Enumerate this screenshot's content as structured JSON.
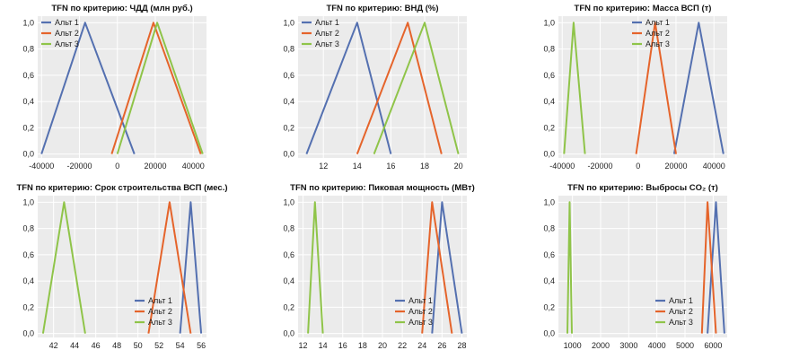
{
  "chart_data": [
    {
      "type": "line",
      "title": "TFN по критерию: ЧДД (млн руб.)",
      "xlim": [
        -42000,
        47000
      ],
      "ylim": [
        -0.03,
        1.05
      ],
      "x_ticks": [
        -40000,
        -20000,
        0,
        20000,
        40000
      ],
      "x_tick_labels": [
        "-40000",
        "-20000",
        "0",
        "20000",
        "40000"
      ],
      "y_ticks": [
        0,
        0.2,
        0.4,
        0.6,
        0.8,
        1.0
      ],
      "y_tick_labels": [
        "0,0",
        "0,2",
        "0,4",
        "0,6",
        "0,8",
        "1,0"
      ],
      "grid": true,
      "legend_position": "top-left",
      "series": [
        {
          "name": "Альт 1",
          "color": "#5470b0",
          "x": [
            -40000,
            -17000,
            9000
          ],
          "y": [
            0,
            1,
            0
          ]
        },
        {
          "name": "Альт 2",
          "color": "#e5642b",
          "x": [
            -3000,
            19000,
            44000
          ],
          "y": [
            0,
            1,
            0
          ]
        },
        {
          "name": "Альт 3",
          "color": "#8fc449",
          "x": [
            0,
            21000,
            45000
          ],
          "y": [
            0,
            1,
            0
          ]
        }
      ]
    },
    {
      "type": "line",
      "title": "TFN по критерию: ВНД (%)",
      "xlim": [
        10.5,
        20.5
      ],
      "ylim": [
        -0.03,
        1.05
      ],
      "x_ticks": [
        12,
        14,
        16,
        18,
        20
      ],
      "x_tick_labels": [
        "12",
        "14",
        "16",
        "18",
        "20"
      ],
      "y_ticks": [
        0,
        0.2,
        0.4,
        0.6,
        0.8,
        1.0
      ],
      "y_tick_labels": [
        "0,0",
        "0,2",
        "0,4",
        "0,6",
        "0,8",
        "1,0"
      ],
      "grid": true,
      "legend_position": "top-left",
      "series": [
        {
          "name": "Альт 1",
          "color": "#5470b0",
          "x": [
            11,
            14,
            16
          ],
          "y": [
            0,
            1,
            0
          ]
        },
        {
          "name": "Альт 2",
          "color": "#e5642b",
          "x": [
            14,
            17,
            19
          ],
          "y": [
            0,
            1,
            0
          ]
        },
        {
          "name": "Альт 3",
          "color": "#8fc449",
          "x": [
            15,
            18,
            20
          ],
          "y": [
            0,
            1,
            0
          ]
        }
      ]
    },
    {
      "type": "line",
      "title": "TFN по критерию: Масса ВСП (т)",
      "xlim": [
        -42000,
        47000
      ],
      "ylim": [
        -0.03,
        1.05
      ],
      "x_ticks": [
        -40000,
        -20000,
        0,
        20000,
        40000
      ],
      "x_tick_labels": [
        "-40000",
        "-20000",
        "0",
        "20000",
        "40000"
      ],
      "y_ticks": [
        0,
        0.2,
        0.4,
        0.6,
        0.8,
        1.0
      ],
      "y_tick_labels": [
        "0,0",
        "0,2",
        "0,4",
        "0,6",
        "0,8",
        "1,0"
      ],
      "grid": true,
      "legend_position": "top-center",
      "series": [
        {
          "name": "Альт 1",
          "color": "#5470b0",
          "x": [
            19000,
            32000,
            45000
          ],
          "y": [
            0,
            1,
            0
          ]
        },
        {
          "name": "Альт 2",
          "color": "#e5642b",
          "x": [
            -1000,
            9000,
            20000
          ],
          "y": [
            0,
            1,
            0
          ]
        },
        {
          "name": "Альт 3",
          "color": "#8fc449",
          "x": [
            -39000,
            -34000,
            -28000
          ],
          "y": [
            0,
            1,
            0
          ]
        }
      ]
    },
    {
      "type": "line",
      "title": "TFN по критерию: Срок строительства ВСП (мес.)",
      "xlim": [
        40.5,
        56.5
      ],
      "ylim": [
        -0.03,
        1.05
      ],
      "x_ticks": [
        42,
        44,
        46,
        48,
        50,
        52,
        54,
        56
      ],
      "x_tick_labels": [
        "42",
        "44",
        "46",
        "48",
        "50",
        "52",
        "54",
        "56"
      ],
      "y_ticks": [
        0,
        0.2,
        0.4,
        0.6,
        0.8,
        1.0
      ],
      "y_tick_labels": [
        "0,0",
        "0,2",
        "0,4",
        "0,6",
        "0,8",
        "1,0"
      ],
      "grid": true,
      "legend_position": "bottom-right",
      "series": [
        {
          "name": "Альт 1",
          "color": "#5470b0",
          "x": [
            54,
            55,
            56
          ],
          "y": [
            0,
            1,
            0
          ]
        },
        {
          "name": "Альт 2",
          "color": "#e5642b",
          "x": [
            51,
            53,
            55
          ],
          "y": [
            0,
            1,
            0
          ]
        },
        {
          "name": "Альт 3",
          "color": "#8fc449",
          "x": [
            41,
            43,
            45
          ],
          "y": [
            0,
            1,
            0
          ]
        }
      ]
    },
    {
      "type": "line",
      "title": "TFN по критерию: Пиковая мощность (МВт)",
      "xlim": [
        11.5,
        28.5
      ],
      "ylim": [
        -0.03,
        1.05
      ],
      "x_ticks": [
        12,
        14,
        16,
        18,
        20,
        22,
        24,
        26,
        28
      ],
      "x_tick_labels": [
        "12",
        "14",
        "16",
        "18",
        "20",
        "22",
        "24",
        "26",
        "28"
      ],
      "y_ticks": [
        0,
        0.2,
        0.4,
        0.6,
        0.8,
        1.0
      ],
      "y_tick_labels": [
        "0,0",
        "0,2",
        "0,4",
        "0,6",
        "0,8",
        "1,0"
      ],
      "grid": true,
      "legend_position": "bottom-right",
      "series": [
        {
          "name": "Альт 1",
          "color": "#5470b0",
          "x": [
            25,
            26,
            28
          ],
          "y": [
            0,
            1,
            0
          ]
        },
        {
          "name": "Альт 2",
          "color": "#e5642b",
          "x": [
            24,
            25,
            27
          ],
          "y": [
            0,
            1,
            0
          ]
        },
        {
          "name": "Альт 3",
          "color": "#8fc449",
          "x": [
            12.5,
            13.2,
            14
          ],
          "y": [
            0,
            1,
            0
          ]
        }
      ]
    },
    {
      "type": "line",
      "title": "TFN по критерию: Выбросы CO₂ (т)",
      "xlim": [
        500,
        6500
      ],
      "ylim": [
        -0.03,
        1.05
      ],
      "x_ticks": [
        1000,
        2000,
        3000,
        4000,
        5000,
        6000
      ],
      "x_tick_labels": [
        "1000",
        "2000",
        "3000",
        "4000",
        "5000",
        "6000"
      ],
      "y_ticks": [
        0,
        0.2,
        0.4,
        0.6,
        0.8,
        1.0
      ],
      "y_tick_labels": [
        "0,0",
        "0,2",
        "0,4",
        "0,6",
        "0,8",
        "1,0"
      ],
      "grid": true,
      "legend_position": "bottom-right",
      "series": [
        {
          "name": "Альт 1",
          "color": "#5470b0",
          "x": [
            5800,
            6100,
            6400
          ],
          "y": [
            0,
            1,
            0
          ]
        },
        {
          "name": "Альт 2",
          "color": "#e5642b",
          "x": [
            5600,
            5800,
            6100
          ],
          "y": [
            0,
            1,
            0
          ]
        },
        {
          "name": "Альт 3",
          "color": "#8fc449",
          "x": [
            820,
            900,
            980
          ],
          "y": [
            0,
            1,
            0
          ]
        }
      ]
    }
  ]
}
